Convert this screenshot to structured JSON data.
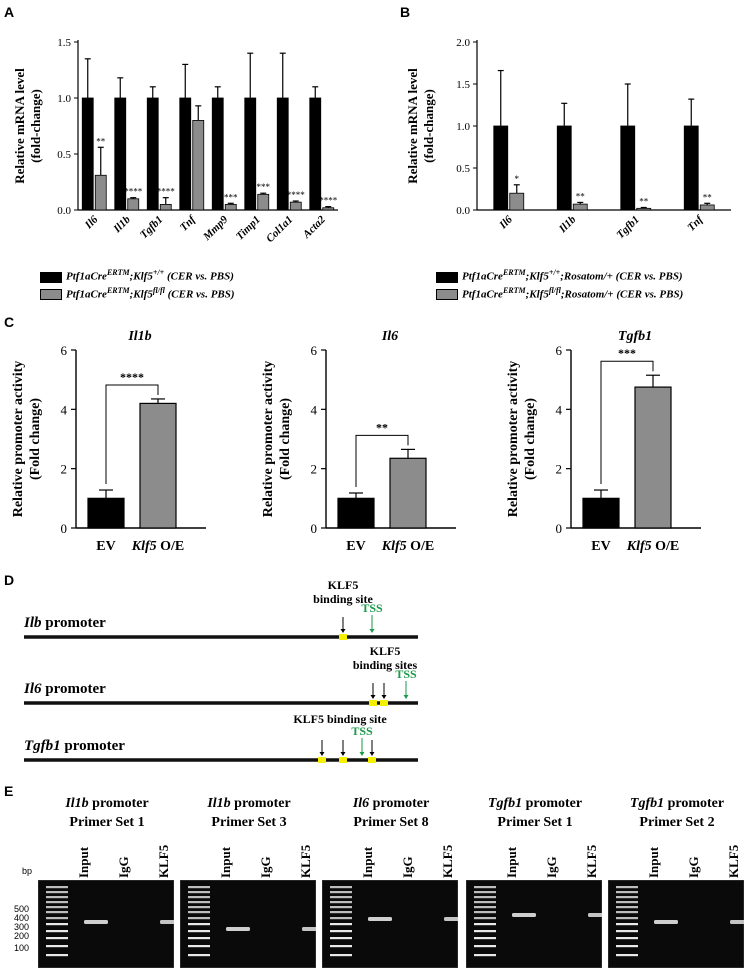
{
  "panel_labels": [
    "A",
    "B",
    "C",
    "D",
    "E"
  ],
  "colors": {
    "black_bar": "#000000",
    "grey_bar": "#8c8c8c",
    "tss": "#1a9a4a",
    "site": "#f5f000",
    "gel_bg": "#0a0a0a"
  },
  "panelA": {
    "ylabel_1": "Relative mRNA level",
    "ylabel_2": "(fold-change)",
    "legend": [
      {
        "text": "Ptf1aCre",
        "sup": "ERTM",
        "text2": ";Klf5",
        "sup2": "+/+",
        "text3": " (CER vs. PBS)",
        "color": "#000000"
      },
      {
        "text": "Ptf1aCre",
        "sup": "ERTM",
        "text2": ";Klf5",
        "sup2": "fl/fl",
        "text3": " (CER vs. PBS)",
        "color": "#8c8c8c"
      }
    ]
  },
  "panelB": {
    "ylabel_1": "Relative mRNA level",
    "ylabel_2": "(fold-change)",
    "legend": [
      {
        "text": "Ptf1aCre",
        "sup": "ERTM",
        "text2": ";Klf5",
        "sup2": "+/+",
        "text3": ";Rosatom/+ (CER vs. PBS)",
        "color": "#000000"
      },
      {
        "text": "Ptf1aCre",
        "sup": "ERTM",
        "text2": ";Klf5",
        "sup2": "fl/fl",
        "text3": ";Rosatom/+ (CER vs. PBS)",
        "color": "#8c8c8c"
      }
    ]
  },
  "panelC": {
    "ylabel_1": "Relative promoter activity",
    "ylabel_2": "(Fold change)"
  },
  "chart_data": [
    {
      "type": "bar",
      "panel": "A",
      "categories": [
        "Il6",
        "Il1b",
        "Tgfb1",
        "Tnf",
        "Mmp9",
        "Timp1",
        "Col1a1",
        "Acta2"
      ],
      "series": [
        {
          "values": [
            1,
            1,
            1,
            1,
            1,
            1,
            1,
            1
          ],
          "error": [
            0.35,
            0.18,
            0.1,
            0.3,
            0.1,
            0.4,
            0.4,
            0.1
          ]
        },
        {
          "values": [
            0.31,
            0.1,
            0.05,
            0.8,
            0.05,
            0.14,
            0.07,
            0.02
          ],
          "error": [
            0.25,
            0.01,
            0.06,
            0.13,
            0.01,
            0.01,
            0.01,
            0.01
          ]
        }
      ],
      "significance": [
        "**",
        "****",
        "****",
        "",
        "***",
        "***",
        "****",
        "****"
      ],
      "ylabel": "Relative mRNA level (fold-change)",
      "ylim": [
        0,
        1.5
      ],
      "yticks": [
        "0.0",
        "0.5",
        "1.0",
        "1.5"
      ]
    },
    {
      "type": "bar",
      "panel": "B",
      "categories": [
        "Il6",
        "Il1b",
        "Tgfb1",
        "Tnf"
      ],
      "series": [
        {
          "values": [
            1,
            1,
            1,
            1
          ],
          "error": [
            0.66,
            0.27,
            0.5,
            0.32
          ]
        },
        {
          "values": [
            0.2,
            0.07,
            0.02,
            0.06
          ],
          "error": [
            0.1,
            0.02,
            0.01,
            0.02
          ]
        }
      ],
      "significance": [
        "*",
        "**",
        "**",
        "**"
      ],
      "ylabel": "Relative mRNA level (fold-change)",
      "ylim": [
        0,
        2.0
      ],
      "yticks": [
        "0.0",
        "0.5",
        "1.0",
        "1.5",
        "2.0"
      ]
    },
    {
      "type": "bar",
      "panel": "C",
      "title": "Il1b",
      "categories": [
        "EV",
        "Klf5 O/E"
      ],
      "values": [
        1.0,
        4.2
      ],
      "error": [
        0.28,
        0.15
      ],
      "significance": "****",
      "ylabel": "Relative promoter activity (Fold change)",
      "ylim": [
        0,
        6
      ],
      "yticks": [
        "0",
        "2",
        "4",
        "6"
      ]
    },
    {
      "type": "bar",
      "panel": "C",
      "title": "Il6",
      "categories": [
        "EV",
        "Klf5 O/E"
      ],
      "values": [
        1.0,
        2.35
      ],
      "error": [
        0.18,
        0.3
      ],
      "significance": "**",
      "ylabel": "Relative promoter activity (Fold change)",
      "ylim": [
        0,
        6
      ],
      "yticks": [
        "0",
        "2",
        "4",
        "6"
      ]
    },
    {
      "type": "bar",
      "panel": "C",
      "title": "Tgfb1",
      "categories": [
        "EV",
        "Klf5 O/E"
      ],
      "values": [
        1.0,
        4.75
      ],
      "error": [
        0.28,
        0.4
      ],
      "significance": "***",
      "ylabel": "Relative promoter activity (Fold change)",
      "ylim": [
        0,
        6
      ],
      "yticks": [
        "0",
        "2",
        "4",
        "6"
      ]
    }
  ],
  "panelD": {
    "promoters": [
      {
        "name": "Ilb promoter",
        "site_label": "KLF5\nbinding site",
        "tss": "TSS"
      },
      {
        "name": "Il6 promoter",
        "site_label": "KLF5\nbinding sites",
        "tss": "TSS"
      },
      {
        "name": "Tgfb1 promoter",
        "site_label": "KLF5 binding site",
        "tss": "TSS"
      }
    ]
  },
  "panelE": {
    "bp_label": "bp",
    "ladder": [
      "500",
      "400",
      "300",
      "200",
      "100"
    ],
    "lanes": [
      "Input",
      "IgG",
      "KLF5"
    ],
    "gels": [
      {
        "gene": "Il1b",
        "suffix": " promoter",
        "primer": "Primer Set 1",
        "bands": [
          1,
          0,
          1
        ]
      },
      {
        "gene": "Il1b",
        "suffix": " promoter",
        "primer": "Primer Set 3",
        "bands": [
          1,
          0,
          1
        ]
      },
      {
        "gene": "Il6",
        "suffix": " promoter",
        "primer": "Primer Set 8",
        "bands": [
          1,
          0,
          1
        ]
      },
      {
        "gene": "Tgfb1",
        "suffix": " promoter",
        "primer": "Primer Set 1",
        "bands": [
          1,
          0,
          1
        ]
      },
      {
        "gene": "Tgfb1",
        "suffix": " promoter",
        "primer": "Primer Set 2",
        "bands": [
          1,
          0,
          1
        ]
      }
    ]
  }
}
